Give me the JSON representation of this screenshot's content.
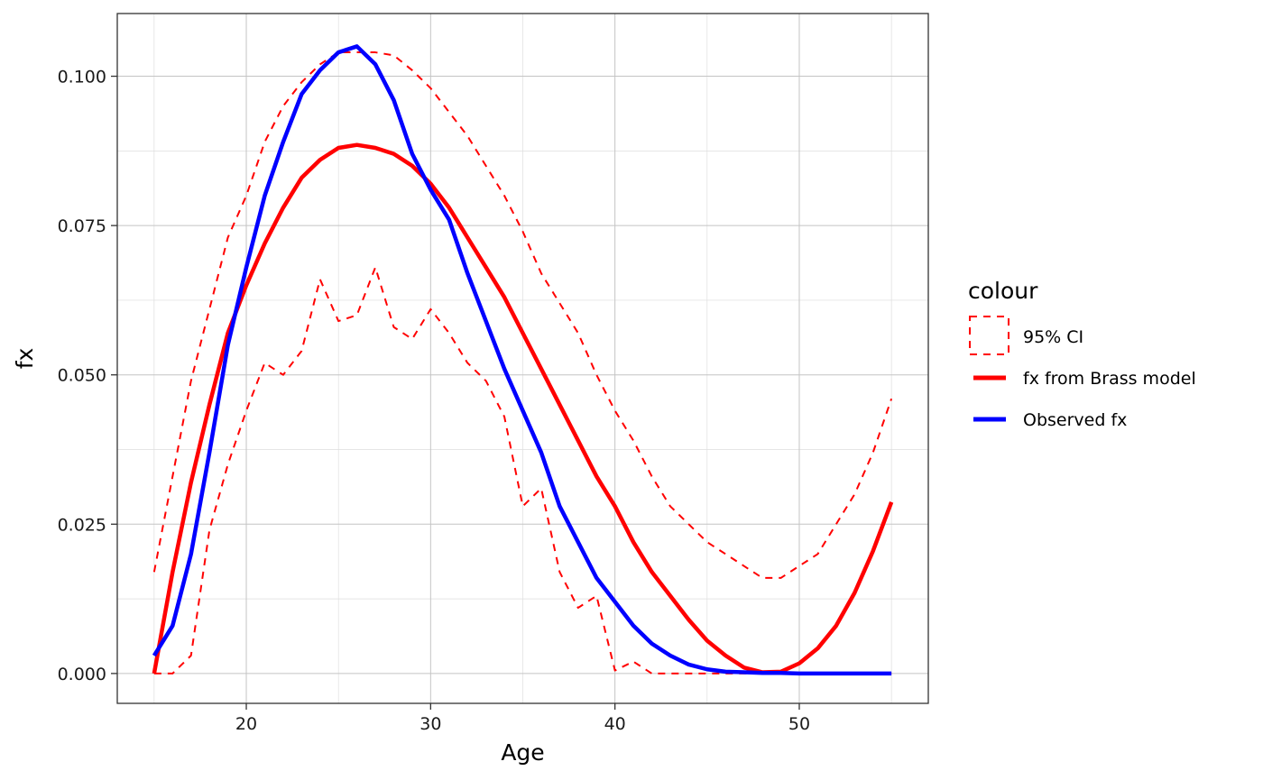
{
  "chart_data": {
    "type": "line",
    "xlabel": "Age",
    "ylabel": "fx",
    "xlim": [
      13,
      57
    ],
    "ylim": [
      -0.005,
      0.1105
    ],
    "x_ticks": [
      20,
      30,
      40,
      50
    ],
    "x_tick_labels": [
      "20",
      "30",
      "40",
      "50"
    ],
    "y_ticks": [
      0,
      0.025,
      0.05,
      0.075,
      0.1
    ],
    "y_tick_labels": [
      "0.000",
      "0.025",
      "0.050",
      "0.075",
      "0.100"
    ],
    "grid": true,
    "legend": {
      "title": "colour",
      "position": "right",
      "entries": [
        {
          "label": "95% CI",
          "color": "#ff0000",
          "style": "dashed"
        },
        {
          "label": "fx from Brass model",
          "color": "#ff0000",
          "style": "solid"
        },
        {
          "label": "Observed fx",
          "color": "#0000ff",
          "style": "solid"
        }
      ]
    },
    "x": [
      15,
      16,
      17,
      18,
      19,
      20,
      21,
      22,
      23,
      24,
      25,
      26,
      27,
      28,
      29,
      30,
      31,
      32,
      33,
      34,
      35,
      36,
      37,
      38,
      39,
      40,
      41,
      42,
      43,
      44,
      45,
      46,
      47,
      48,
      49,
      50,
      51,
      52,
      53,
      54,
      55
    ],
    "series": [
      {
        "name": "Observed fx",
        "color": "#0000ff",
        "style": "solid",
        "values": [
          0.003,
          0.008,
          0.02,
          0.037,
          0.055,
          0.068,
          0.08,
          0.089,
          0.097,
          0.101,
          0.104,
          0.105,
          0.102,
          0.096,
          0.087,
          0.081,
          0.076,
          0.067,
          0.059,
          0.051,
          0.044,
          0.037,
          0.028,
          0.022,
          0.016,
          0.012,
          0.008,
          0.005,
          0.003,
          0.0015,
          0.0007,
          0.0003,
          0.0002,
          0.0001,
          0.0001,
          0.0,
          0.0,
          0.0,
          0.0,
          0.0,
          0.0
        ]
      },
      {
        "name": "fx from Brass model",
        "color": "#ff0000",
        "style": "solid",
        "values": [
          0.0,
          0.017,
          0.032,
          0.045,
          0.057,
          0.065,
          0.072,
          0.078,
          0.083,
          0.086,
          0.088,
          0.0885,
          0.088,
          0.087,
          0.085,
          0.082,
          0.078,
          0.073,
          0.068,
          0.063,
          0.057,
          0.051,
          0.045,
          0.039,
          0.033,
          0.028,
          0.022,
          0.017,
          0.013,
          0.009,
          0.0055,
          0.003,
          0.001,
          0.0002,
          0.0003,
          0.0017,
          0.0042,
          0.008,
          0.0135,
          0.0205,
          0.0287
        ]
      },
      {
        "name": "95% CI upper",
        "legend_label": "95% CI",
        "color": "#ff0000",
        "style": "dashed",
        "values": [
          0.017,
          0.033,
          0.049,
          0.061,
          0.073,
          0.08,
          0.089,
          0.095,
          0.099,
          0.102,
          0.104,
          0.104,
          0.104,
          0.1035,
          0.101,
          0.098,
          0.094,
          0.09,
          0.085,
          0.08,
          0.074,
          0.067,
          0.062,
          0.057,
          0.05,
          0.044,
          0.039,
          0.033,
          0.028,
          0.025,
          0.022,
          0.02,
          0.018,
          0.016,
          0.016,
          0.018,
          0.02,
          0.025,
          0.03,
          0.037,
          0.046
        ]
      },
      {
        "name": "95% CI lower",
        "legend_label": "95% CI",
        "color": "#ff0000",
        "style": "dashed",
        "values": [
          0.0,
          0.0,
          0.003,
          0.024,
          0.035,
          0.044,
          0.052,
          0.05,
          0.054,
          0.066,
          0.059,
          0.06,
          0.068,
          0.058,
          0.056,
          0.061,
          0.057,
          0.052,
          0.049,
          0.043,
          0.028,
          0.031,
          0.017,
          0.011,
          0.013,
          0.0005,
          0.002,
          0.0,
          0.0,
          0.0,
          0.0,
          0.0,
          0.0,
          0.0,
          0.0,
          0.0,
          0.0,
          0.0,
          0.0,
          0.0,
          0.0
        ]
      }
    ]
  }
}
